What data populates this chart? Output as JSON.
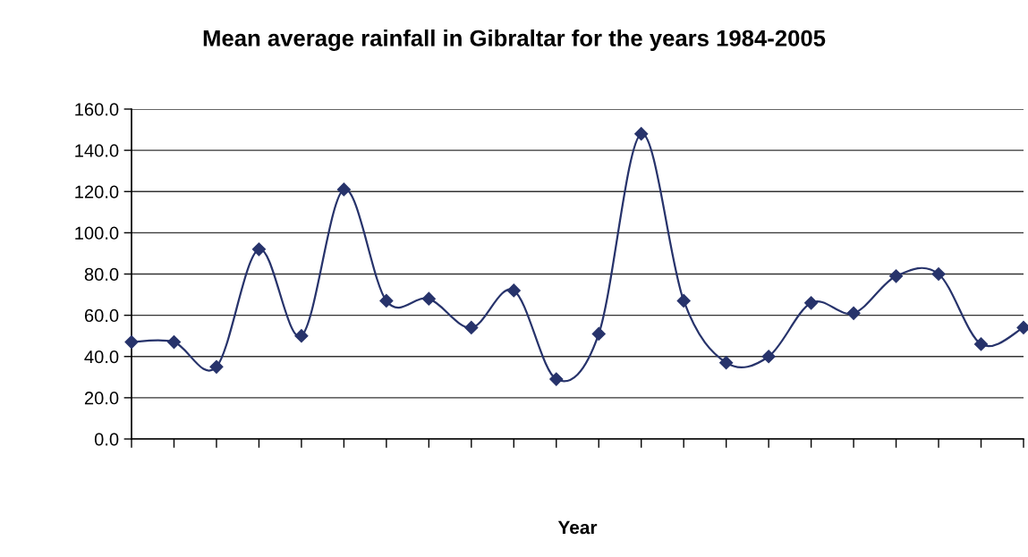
{
  "chart_data": {
    "type": "line",
    "title": "Mean average rainfall in Gibraltar for the years 1984-2005",
    "xlabel": "Year",
    "categories": [
      null,
      null,
      null,
      null,
      null,
      null,
      null,
      null,
      null,
      null,
      null,
      null,
      null,
      null,
      null,
      null,
      null,
      null,
      null,
      null,
      null,
      null
    ],
    "series": [
      {
        "color": "#27336b",
        "values": [
          47,
          47,
          35,
          92,
          50,
          121,
          67,
          68,
          54,
          72,
          29,
          51,
          148,
          67,
          37,
          40,
          66,
          61,
          79,
          80,
          46,
          54
        ]
      }
    ],
    "ylim": [
      0,
      160
    ],
    "yticks": [
      {
        "value": 0,
        "label": "0.0"
      },
      {
        "value": 20,
        "label": "20.0"
      },
      {
        "value": 40,
        "label": "40.0"
      },
      {
        "value": 60,
        "label": "60.0"
      },
      {
        "value": 80,
        "label": "80.0"
      },
      {
        "value": 100,
        "label": "100.0"
      },
      {
        "value": 120,
        "label": "120.0"
      },
      {
        "value": 140,
        "label": "140.0"
      },
      {
        "value": 160,
        "label": "160.0"
      }
    ],
    "grid": "y",
    "marker": "diamond",
    "line_style": "solid",
    "tick_labels": "y"
  }
}
